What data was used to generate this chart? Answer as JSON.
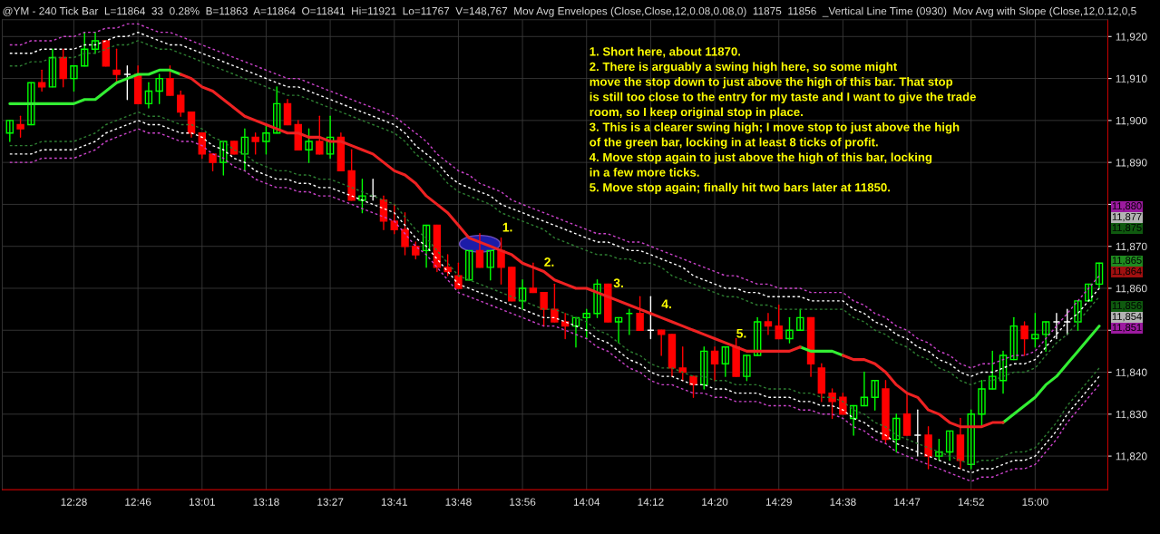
{
  "chart_data": {
    "type": "candlestick",
    "title": "@YM - 240 Tick Bar  L=11864  33  0.28%  B=11863  A=11864  O=11841  Hi=11921  Lo=11767  V=148,767  Mov Avg Envelopes (Close,Close,12,0.08,0.08,0)  11875  11856  _Vertical Line Time (0930)  Mov Avg with Slope (Close,12,0.12,0,5",
    "categories": [
      null,
      null,
      null,
      null,
      null,
      null,
      "12:28",
      null,
      null,
      null,
      null,
      null,
      "12:46",
      null,
      null,
      null,
      null,
      null,
      "13:01",
      null,
      null,
      null,
      null,
      null,
      "13:18",
      null,
      null,
      null,
      null,
      null,
      "13:27",
      null,
      null,
      null,
      null,
      null,
      "13:41",
      null,
      null,
      null,
      null,
      null,
      "13:48",
      null,
      null,
      null,
      null,
      null,
      "13:56",
      null,
      null,
      null,
      null,
      null,
      "14:04",
      null,
      null,
      null,
      null,
      null,
      "14:12",
      null,
      null,
      null,
      null,
      null,
      "14:20",
      null,
      null,
      null,
      null,
      null,
      "14:29",
      null,
      null,
      null,
      null,
      null,
      "14:38",
      null,
      null,
      null,
      null,
      null,
      "14:47",
      null,
      null,
      null,
      null,
      null,
      "14:52",
      null,
      null,
      null,
      null,
      null,
      "15:00",
      null,
      null,
      null,
      null,
      null,
      null
    ],
    "ohlc": [
      [
        11897,
        11900,
        11895,
        11900
      ],
      [
        11899,
        11901,
        11896,
        11898
      ],
      [
        11899,
        11909,
        11899,
        11909
      ],
      [
        11909,
        11912,
        11907,
        11908
      ],
      [
        11908,
        11917,
        11908,
        11915
      ],
      [
        11915,
        11917,
        11908,
        11910
      ],
      [
        11910,
        11913,
        11907,
        11913
      ],
      [
        11913,
        11921,
        11913,
        11917
      ],
      [
        11917,
        11921,
        11916,
        11919
      ],
      [
        11919,
        11919,
        11913,
        11913
      ],
      [
        11912,
        11917,
        11909,
        11911
      ],
      [
        11911,
        11913,
        11905,
        11911
      ],
      [
        11911,
        11913,
        11904,
        11904
      ],
      [
        11904,
        11909,
        11903,
        11907
      ],
      [
        11907,
        11911,
        11904,
        11910
      ],
      [
        11910,
        11913,
        11906,
        11906
      ],
      [
        11906,
        11907,
        11901,
        11902
      ],
      [
        11902,
        11902,
        11896,
        11897
      ],
      [
        11897,
        11897,
        11891,
        11892
      ],
      [
        11892,
        11892,
        11888,
        11890
      ],
      [
        11890,
        11895,
        11887,
        11895
      ],
      [
        11895,
        11895,
        11892,
        11892
      ],
      [
        11892,
        11898,
        11888,
        11896
      ],
      [
        11896,
        11897,
        11892,
        11895
      ],
      [
        11895,
        11899,
        11892,
        11897
      ],
      [
        11897,
        11908,
        11897,
        11904
      ],
      [
        11904,
        11905,
        11899,
        11899
      ],
      [
        11899,
        11900,
        11893,
        11893
      ],
      [
        11893,
        11898,
        11890,
        11895
      ],
      [
        11895,
        11901,
        11892,
        11892
      ],
      [
        11892,
        11901,
        11891,
        11896
      ],
      [
        11896,
        11897,
        11888,
        11888
      ],
      [
        11888,
        11893,
        11881,
        11881
      ],
      [
        11881,
        11886,
        11878,
        11882
      ],
      [
        11882,
        11886,
        11881,
        11882
      ],
      [
        11881,
        11882,
        11874,
        11876
      ],
      [
        11876,
        11880,
        11873,
        11874
      ],
      [
        11874,
        11878,
        11868,
        11870
      ],
      [
        11870,
        11871,
        11867,
        11868
      ],
      [
        11869,
        11875,
        11865,
        11875
      ],
      [
        11875,
        11875,
        11864,
        11865
      ],
      [
        11865,
        11868,
        11863,
        11864
      ],
      [
        11863,
        11866,
        11860,
        11860
      ],
      [
        11862,
        11869,
        11862,
        11869
      ],
      [
        11869,
        11873,
        11865,
        11865
      ],
      [
        11865,
        11869,
        11862,
        11869
      ],
      [
        11869,
        11872,
        11861,
        11865
      ],
      [
        11865,
        11865,
        11857,
        11857
      ],
      [
        11857,
        11862,
        11855,
        11860
      ],
      [
        11860,
        11866,
        11859,
        11859
      ],
      [
        11859,
        11859,
        11851,
        11855
      ],
      [
        11855,
        11861,
        11852,
        11852
      ],
      [
        11852,
        11854,
        11848,
        11851
      ],
      [
        11851,
        11853,
        11846,
        11853
      ],
      [
        11853,
        11855,
        11848,
        11854
      ],
      [
        11854,
        11862,
        11853,
        11861
      ],
      [
        11861,
        11861,
        11852,
        11852
      ],
      [
        11852,
        11853,
        11847,
        11853
      ],
      [
        11854,
        11855,
        11849,
        11854
      ],
      [
        11854,
        11858,
        11850,
        11850
      ],
      [
        11850,
        11858,
        11848,
        11850
      ],
      [
        11850,
        11850,
        11844,
        11849
      ],
      [
        11849,
        11849,
        11839,
        11841
      ],
      [
        11841,
        11846,
        11838,
        11840
      ],
      [
        11839,
        11839,
        11834,
        11837
      ],
      [
        11837,
        11846,
        11836,
        11845
      ],
      [
        11845,
        11846,
        11838,
        11842
      ],
      [
        11842,
        11846,
        11839,
        11846
      ],
      [
        11846,
        11848,
        11839,
        11839
      ],
      [
        11839,
        11844,
        11838,
        11844
      ],
      [
        11844,
        11853,
        11844,
        11852
      ],
      [
        11852,
        11854,
        11849,
        11851
      ],
      [
        11851,
        11856,
        11848,
        11848
      ],
      [
        11848,
        11853,
        11847,
        11850
      ],
      [
        11850,
        11855,
        11850,
        11853
      ],
      [
        11853,
        11853,
        11839,
        11842
      ],
      [
        11841,
        11842,
        11833,
        11835
      ],
      [
        11835,
        11836,
        11829,
        11833
      ],
      [
        11834,
        11835,
        11830,
        11830
      ],
      [
        11829,
        11832,
        11825,
        11832
      ],
      [
        11832,
        11840,
        11832,
        11834
      ],
      [
        11834,
        11838,
        11831,
        11838
      ],
      [
        11836,
        11838,
        11823,
        11824
      ],
      [
        11824,
        11830,
        11821,
        11829
      ],
      [
        11830,
        11835,
        11825,
        11825
      ],
      [
        11825,
        11831,
        11820,
        11825
      ],
      [
        11825,
        11827,
        11817,
        11820
      ],
      [
        11820,
        11824,
        11819,
        11821
      ],
      [
        11821,
        11826,
        11819,
        11826
      ],
      [
        11825,
        11829,
        11817,
        11819
      ],
      [
        11818,
        11831,
        11817,
        11830
      ],
      [
        11830,
        11838,
        11827,
        11836
      ],
      [
        11836,
        11845,
        11836,
        11839
      ],
      [
        11838,
        11845,
        11835,
        11844
      ],
      [
        11843,
        11853,
        11843,
        11851
      ],
      [
        11851,
        11852,
        11844,
        11848
      ],
      [
        11848,
        11854,
        11846,
        11849
      ],
      [
        11849,
        11852,
        11845,
        11852
      ],
      [
        11852,
        11854,
        11848,
        11852
      ],
      [
        11852,
        11855,
        11849,
        11852
      ],
      [
        11852,
        11857,
        11850,
        11857
      ],
      [
        11857,
        11861,
        11857,
        11861
      ],
      [
        11861,
        11866,
        11860,
        11866
      ]
    ],
    "colors": [
      "#00ff00",
      "#ff0000",
      "#00ff00",
      "#ff0000",
      "#00ff00",
      "#ff0000",
      "#00ff00",
      "#00ff00",
      "#00ff00",
      "#ff0000",
      "#ff0000",
      "#ffffff",
      "#ff0000",
      "#00ff00",
      "#00ff00",
      "#ff0000",
      "#ff0000",
      "#ff0000",
      "#ff0000",
      "#ff0000",
      "#00ff00",
      "#ff0000",
      "#00ff00",
      "#ff0000",
      "#00ff00",
      "#00ff00",
      "#ff0000",
      "#ff0000",
      "#00ff00",
      "#ff0000",
      "#00ff00",
      "#ff0000",
      "#ff0000",
      "#00ff00",
      "#ffffff",
      "#ff0000",
      "#ff0000",
      "#ff0000",
      "#ff0000",
      "#00ff00",
      "#ff0000",
      "#ff0000",
      "#ff0000",
      "#00ff00",
      "#ff0000",
      "#00ff00",
      "#ff0000",
      "#ff0000",
      "#00ff00",
      "#ff0000",
      "#ff0000",
      "#ff0000",
      "#ff0000",
      "#00ff00",
      "#00ff00",
      "#00ff00",
      "#ff0000",
      "#00ff00",
      "#00ff00",
      "#ff0000",
      "#ffffff",
      "#ff0000",
      "#ff0000",
      "#ff0000",
      "#ff0000",
      "#00ff00",
      "#ff0000",
      "#00ff00",
      "#ff0000",
      "#00ff00",
      "#00ff00",
      "#ff0000",
      "#ff0000",
      "#00ff00",
      "#00ff00",
      "#ff0000",
      "#ff0000",
      "#ff0000",
      "#ff0000",
      "#00ff00",
      "#00ff00",
      "#00ff00",
      "#ff0000",
      "#00ff00",
      "#ff0000",
      "#ffffff",
      "#ff0000",
      "#00ff00",
      "#00ff00",
      "#ff0000",
      "#00ff00",
      "#00ff00",
      "#00ff00",
      "#00ff00",
      "#00ff00",
      "#ff0000",
      "#00ff00",
      "#00ff00",
      "#ffffff",
      "#ffffff",
      "#00ff00",
      "#00ff00",
      "#00ff00"
    ],
    "series": [
      {
        "type": "line",
        "color": "#cc44cc",
        "line_style": "dashed",
        "values": [
          11918,
          11918,
          11919,
          11919,
          11919,
          11920,
          11920,
          11921,
          11921,
          11922,
          11922,
          11923,
          11923,
          11922,
          11921,
          11921,
          11920,
          11919,
          11918,
          11917,
          11916,
          11915,
          11914,
          11913,
          11912,
          11911,
          11910,
          11910,
          11909,
          11908,
          11907,
          11906,
          11905,
          11904,
          11903,
          11902,
          11901,
          11899,
          11897,
          11895,
          11892,
          11890,
          11888,
          11887,
          11885,
          11884,
          11883,
          11881,
          11880,
          11879,
          11878,
          11877,
          11876,
          11875,
          11874,
          11873,
          11873,
          11872,
          11871,
          11871,
          11870,
          11869,
          11868,
          11867,
          11866,
          11865,
          11864,
          11863,
          11863,
          11862,
          11861,
          11861,
          11860,
          11860,
          11860,
          11859,
          11859,
          11859,
          11859,
          11857,
          11856,
          11854,
          11853,
          11851,
          11850,
          11848,
          11847,
          11845,
          11844,
          11842,
          11841,
          11842,
          11842,
          11843,
          11844,
          11844,
          11845,
          11848,
          11851,
          11854,
          11857,
          11860,
          11863
        ]
      },
      {
        "type": "line",
        "color": "#ffffff",
        "line_style": "dashed",
        "values": [
          11916,
          11916,
          11916,
          11917,
          11917,
          11917,
          11917,
          11918,
          11918,
          11919,
          11920,
          11920,
          11921,
          11920,
          11919,
          11918,
          11918,
          11917,
          11916,
          11915,
          11914,
          11913,
          11912,
          11911,
          11910,
          11909,
          11908,
          11908,
          11907,
          11906,
          11905,
          11904,
          11903,
          11902,
          11901,
          11900,
          11899,
          11897,
          11894,
          11892,
          11890,
          11887,
          11885,
          11884,
          11883,
          11882,
          11880,
          11879,
          11878,
          11877,
          11876,
          11875,
          11874,
          11873,
          11872,
          11871,
          11871,
          11870,
          11869,
          11869,
          11868,
          11867,
          11866,
          11865,
          11863,
          11862,
          11861,
          11860,
          11860,
          11859,
          11859,
          11858,
          11858,
          11858,
          11858,
          11857,
          11857,
          11857,
          11857,
          11855,
          11854,
          11852,
          11851,
          11849,
          11848,
          11846,
          11845,
          11843,
          11842,
          11840,
          11839,
          11840,
          11840,
          11841,
          11842,
          11842,
          11843,
          11846,
          11849,
          11852,
          11854,
          11857,
          11860
        ]
      },
      {
        "type": "line",
        "color": "#2e7d32",
        "line_style": "dashed",
        "values": [
          11913,
          11913,
          11914,
          11914,
          11915,
          11915,
          11915,
          11916,
          11916,
          11917,
          11918,
          11918,
          11919,
          11918,
          11917,
          11917,
          11916,
          11915,
          11914,
          11913,
          11912,
          11911,
          11910,
          11909,
          11908,
          11907,
          11906,
          11906,
          11905,
          11904,
          11903,
          11902,
          11901,
          11900,
          11899,
          11898,
          11897,
          11895,
          11892,
          11890,
          11888,
          11885,
          11883,
          11882,
          11881,
          11880,
          11878,
          11877,
          11876,
          11875,
          11874,
          11872,
          11871,
          11870,
          11869,
          11868,
          11868,
          11867,
          11867,
          11866,
          11866,
          11865,
          11863,
          11862,
          11861,
          11860,
          11859,
          11858,
          11858,
          11857,
          11856,
          11856,
          11855,
          11855,
          11855,
          11855,
          11855,
          11855,
          11855,
          11853,
          11852,
          11850,
          11849,
          11847,
          11846,
          11844,
          11843,
          11841,
          11840,
          11838,
          11837,
          11838,
          11838,
          11839,
          11840,
          11840,
          11841,
          11844,
          11847,
          11849,
          11852,
          11855,
          11858
        ]
      },
      {
        "type": "line",
        "color": "#2e7d32",
        "line_style": "dashed",
        "values": [
          11894,
          11894,
          11894,
          11895,
          11895,
          11895,
          11895,
          11896,
          11897,
          11899,
          11900,
          11901,
          11902,
          11901,
          11901,
          11900,
          11899,
          11899,
          11898,
          11896,
          11895,
          11893,
          11892,
          11890,
          11889,
          11888,
          11888,
          11887,
          11887,
          11886,
          11886,
          11885,
          11884,
          11883,
          11882,
          11881,
          11880,
          11877,
          11874,
          11872,
          11869,
          11866,
          11863,
          11862,
          11861,
          11860,
          11859,
          11858,
          11857,
          11856,
          11855,
          11855,
          11854,
          11853,
          11852,
          11850,
          11849,
          11847,
          11845,
          11844,
          11842,
          11841,
          11841,
          11840,
          11839,
          11839,
          11838,
          11838,
          11837,
          11837,
          11837,
          11836,
          11836,
          11836,
          11835,
          11835,
          11834,
          11834,
          11833,
          11831,
          11830,
          11828,
          11827,
          11825,
          11824,
          11823,
          11822,
          11821,
          11820,
          11819,
          11818,
          11819,
          11819,
          11820,
          11821,
          11821,
          11822,
          11825,
          11828,
          11832,
          11835,
          11838,
          11841
        ]
      },
      {
        "type": "line",
        "color": "#ffffff",
        "line_style": "dashed",
        "values": [
          11892,
          11892,
          11892,
          11893,
          11893,
          11893,
          11893,
          11894,
          11895,
          11897,
          11898,
          11899,
          11900,
          11899,
          11899,
          11898,
          11897,
          11897,
          11896,
          11894,
          11893,
          11891,
          11890,
          11888,
          11887,
          11886,
          11886,
          11885,
          11885,
          11884,
          11884,
          11883,
          11882,
          11881,
          11880,
          11879,
          11878,
          11875,
          11872,
          11870,
          11867,
          11864,
          11861,
          11860,
          11859,
          11858,
          11857,
          11856,
          11855,
          11854,
          11853,
          11853,
          11852,
          11851,
          11850,
          11848,
          11847,
          11845,
          11843,
          11842,
          11840,
          11839,
          11839,
          11838,
          11837,
          11837,
          11836,
          11836,
          11835,
          11835,
          11835,
          11834,
          11834,
          11834,
          11833,
          11833,
          11832,
          11832,
          11831,
          11829,
          11828,
          11826,
          11825,
          11823,
          11822,
          11821,
          11820,
          11819,
          11818,
          11817,
          11816,
          11817,
          11817,
          11818,
          11819,
          11819,
          11820,
          11823,
          11826,
          11830,
          11833,
          11836,
          11839
        ]
      },
      {
        "type": "line",
        "color": "#cc44cc",
        "line_style": "dashed",
        "values": [
          11890,
          11890,
          11890,
          11891,
          11891,
          11891,
          11891,
          11892,
          11893,
          11895,
          11896,
          11897,
          11898,
          11897,
          11897,
          11896,
          11895,
          11895,
          11894,
          11892,
          11891,
          11889,
          11888,
          11886,
          11885,
          11884,
          11884,
          11883,
          11883,
          11882,
          11882,
          11881,
          11880,
          11879,
          11878,
          11877,
          11876,
          11873,
          11870,
          11868,
          11865,
          11862,
          11859,
          11858,
          11857,
          11856,
          11855,
          11854,
          11853,
          11852,
          11851,
          11851,
          11850,
          11849,
          11848,
          11846,
          11845,
          11843,
          11841,
          11840,
          11838,
          11837,
          11837,
          11836,
          11835,
          11835,
          11834,
          11834,
          11833,
          11833,
          11833,
          11832,
          11832,
          11832,
          11831,
          11831,
          11830,
          11830,
          11829,
          11827,
          11826,
          11824,
          11823,
          11821,
          11820,
          11819,
          11818,
          11817,
          11816,
          11815,
          11814,
          11815,
          11815,
          11816,
          11817,
          11817,
          11818,
          11821,
          11824,
          11828,
          11831,
          11834,
          11837
        ]
      },
      {
        "type": "line",
        "color": "#33ee33",
        "line_style": "solid",
        "values": [
          11904,
          11904,
          11904,
          11904,
          11904,
          11904,
          11904,
          11905,
          11905,
          11907,
          11909,
          11910,
          11911,
          11911,
          11912,
          11912,
          11911,
          null,
          null,
          null,
          null,
          null,
          null,
          null,
          null,
          null,
          null,
          null,
          null,
          null,
          null,
          null,
          null,
          null,
          null,
          null,
          null,
          null,
          null,
          null,
          null,
          null,
          null,
          null,
          null,
          null,
          null,
          null,
          null,
          null,
          null,
          null,
          null,
          null,
          null,
          null,
          null,
          null,
          null,
          null,
          null,
          null,
          null,
          null,
          null,
          null,
          null,
          null,
          null,
          null,
          null,
          null,
          null,
          null,
          11846,
          11845,
          11845,
          11845,
          11844,
          null,
          null,
          null,
          null,
          null,
          null,
          null,
          null,
          null,
          null,
          null,
          null,
          null,
          null,
          11828,
          11830,
          11832,
          11834,
          11837,
          11839,
          11842,
          11845,
          11848,
          11851
        ]
      },
      {
        "type": "line",
        "color": "#ee2222",
        "line_style": "solid",
        "values": [
          null,
          null,
          null,
          null,
          null,
          null,
          null,
          null,
          null,
          null,
          null,
          null,
          null,
          null,
          null,
          null,
          11911,
          11910,
          11908,
          11907,
          11905,
          11903,
          11901,
          11900,
          11899,
          11898,
          11897,
          11897,
          11896,
          11896,
          11895,
          11895,
          11894,
          11893,
          11892,
          11890,
          11888,
          11887,
          11885,
          11882,
          11880,
          11878,
          11875,
          11872,
          11871,
          11870,
          11869,
          11868,
          11866,
          11865,
          11864,
          11862,
          11861,
          11860,
          11860,
          11859,
          11858,
          11857,
          11856,
          11855,
          11854,
          11853,
          11852,
          11851,
          11850,
          11849,
          11848,
          11847,
          11846,
          11845,
          11845,
          11845,
          11845,
          11845,
          11846,
          null,
          null,
          null,
          11844,
          11843,
          11843,
          11842,
          11840,
          11837,
          11835,
          11834,
          11831,
          11830,
          11828,
          11827,
          11827,
          11827,
          11828,
          11828,
          null,
          null,
          null,
          null,
          null,
          null,
          null,
          null,
          null
        ]
      }
    ],
    "ylim": [
      11812,
      11924
    ],
    "yticks": [
      {
        "value": 11820,
        "label": "11,820"
      },
      {
        "value": 11830,
        "label": "11,830"
      },
      {
        "value": 11840,
        "label": "11,840"
      },
      {
        "value": 11850,
        "label": null
      },
      {
        "value": 11860,
        "label": "11,860"
      },
      {
        "value": 11870,
        "label": "11,870"
      },
      {
        "value": 11880,
        "label": null
      },
      {
        "value": 11890,
        "label": "11,890"
      },
      {
        "value": 11900,
        "label": "11,900"
      },
      {
        "value": 11910,
        "label": "11,910"
      },
      {
        "value": 11920,
        "label": "11,920"
      }
    ],
    "grid": true,
    "annotations": [
      "1. Short here, about 11870.\n2. There is arguably a swing high here, so some might\nmove the stop down to just above the high of this bar. That stop\nis still too close to the entry for my taste and I want to give the trade\nroom, so I keep original stop in place.\n3. This is a clearer swing high; I move stop to just above the high\nof the green bar, locking in at least 8 ticks of profit.\n4. Move stop again to just above the high of this bar, locking\nin a few more ticks.\n5. Move stop again; finally hit two bars later at 11850.",
      "1.",
      "2.",
      "3.",
      "4.",
      "5.",
      "11,880",
      "11,877",
      "11,875",
      "11,865",
      "11,864",
      "11,856",
      "11,854",
      "11,851"
    ]
  }
}
